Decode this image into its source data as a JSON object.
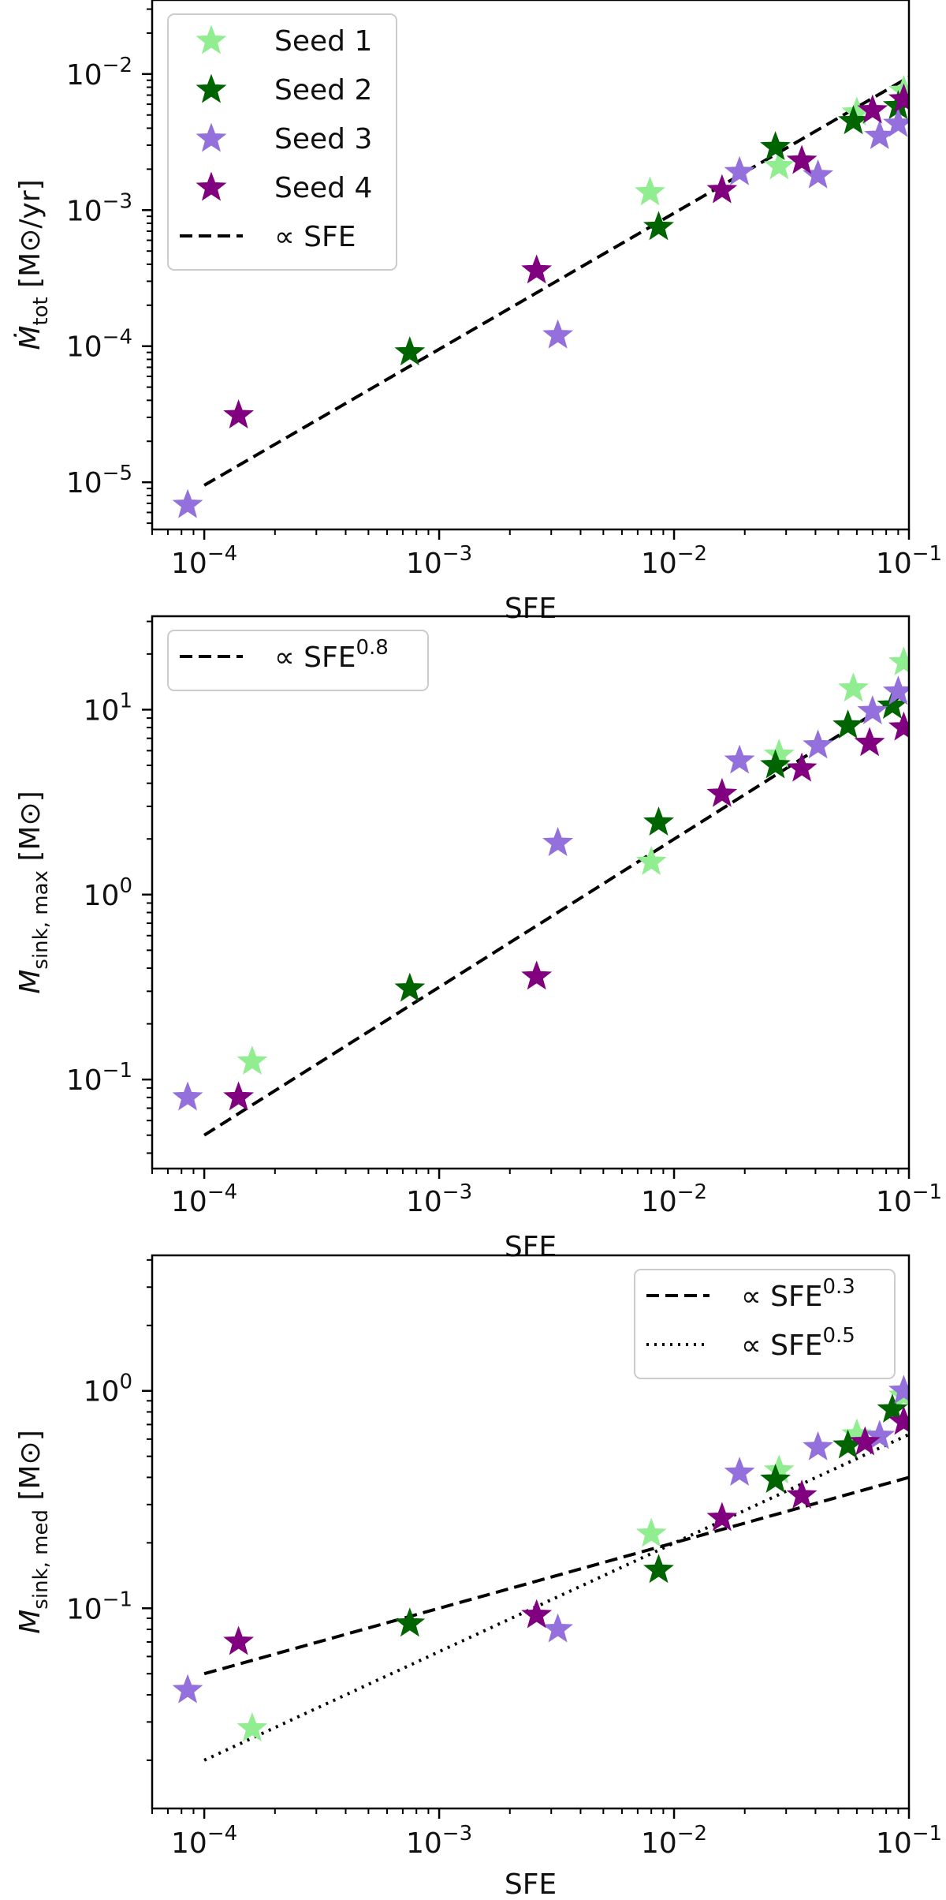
{
  "chart_data": [
    {
      "type": "scatter",
      "xlabel": "SFE",
      "ylabel_main": "Ṁ",
      "ylabel_sub": "tot",
      "ylabel_unit": "[M⊙/yr]",
      "xlim": [
        6e-05,
        0.1
      ],
      "ylim": [
        4.5e-06,
        0.035
      ],
      "x_ticks": [
        {
          "v": 0.0001,
          "base": "10",
          "exp": "−4"
        },
        {
          "v": 0.001,
          "base": "10",
          "exp": "−3"
        },
        {
          "v": 0.01,
          "base": "10",
          "exp": "−2"
        },
        {
          "v": 0.1,
          "base": "10",
          "exp": "−1"
        }
      ],
      "y_ticks": [
        {
          "v": 1e-05,
          "base": "10",
          "exp": "−5"
        },
        {
          "v": 0.0001,
          "base": "10",
          "exp": "−4"
        },
        {
          "v": 0.001,
          "base": "10",
          "exp": "−3"
        },
        {
          "v": 0.01,
          "base": "10",
          "exp": "−2"
        }
      ],
      "legend_position": "top-left",
      "series": [
        {
          "name": "Seed 1",
          "color": "#90ee90",
          "points": [
            [
              0.0079,
              0.00135
            ],
            [
              0.028,
              0.0021
            ],
            [
              0.06,
              0.0052
            ],
            [
              0.095,
              0.0075
            ]
          ]
        },
        {
          "name": "Seed 2",
          "color": "#006400",
          "points": [
            [
              0.00075,
              9e-05
            ],
            [
              0.0086,
              0.00075
            ],
            [
              0.027,
              0.0029
            ],
            [
              0.058,
              0.0045
            ],
            [
              0.09,
              0.0058
            ]
          ]
        },
        {
          "name": "Seed 3",
          "color": "#9370db",
          "points": [
            [
              8.5e-05,
              6.8e-06
            ],
            [
              0.0032,
              0.00012
            ],
            [
              0.019,
              0.0019
            ],
            [
              0.041,
              0.0018
            ],
            [
              0.075,
              0.0035
            ],
            [
              0.09,
              0.0043
            ]
          ]
        },
        {
          "name": "Seed 4",
          "color": "#800080",
          "points": [
            [
              0.00014,
              3.1e-05
            ],
            [
              0.0026,
              0.00036
            ],
            [
              0.016,
              0.0014
            ],
            [
              0.035,
              0.0023
            ],
            [
              0.07,
              0.0054
            ],
            [
              0.095,
              0.0065
            ]
          ]
        }
      ],
      "fit_lines": [
        {
          "label_prefix": "∝ SFE",
          "label_exp": "",
          "style": "dashed",
          "points": [
            [
              0.0001,
              9.5e-06
            ],
            [
              0.1,
              0.0095
            ]
          ]
        }
      ]
    },
    {
      "type": "scatter",
      "xlabel": "SFE",
      "ylabel_main": "M",
      "ylabel_sub": "sink, max",
      "ylabel_unit": "[M⊙]",
      "xlim": [
        6e-05,
        0.1
      ],
      "ylim": [
        0.033,
        32
      ],
      "x_ticks": [
        {
          "v": 0.0001,
          "base": "10",
          "exp": "−4"
        },
        {
          "v": 0.001,
          "base": "10",
          "exp": "−3"
        },
        {
          "v": 0.01,
          "base": "10",
          "exp": "−2"
        },
        {
          "v": 0.1,
          "base": "10",
          "exp": "−1"
        }
      ],
      "y_ticks": [
        {
          "v": 0.1,
          "base": "10",
          "exp": "−1"
        },
        {
          "v": 1,
          "base": "10",
          "exp": "0"
        },
        {
          "v": 10,
          "base": "10",
          "exp": "1"
        }
      ],
      "legend_position": "top-left",
      "series": [
        {
          "name": "Seed 1",
          "color": "#90ee90",
          "points": [
            [
              0.00016,
              0.125
            ],
            [
              0.008,
              1.5
            ],
            [
              0.028,
              5.7
            ],
            [
              0.058,
              13
            ],
            [
              0.095,
              18
            ]
          ]
        },
        {
          "name": "Seed 2",
          "color": "#006400",
          "points": [
            [
              0.00075,
              0.31
            ],
            [
              0.0086,
              2.45
            ],
            [
              0.027,
              5.0
            ],
            [
              0.055,
              8.2
            ],
            [
              0.085,
              10.5
            ]
          ]
        },
        {
          "name": "Seed 3",
          "color": "#9370db",
          "points": [
            [
              8.5e-05,
              0.08
            ],
            [
              0.0032,
              1.9
            ],
            [
              0.019,
              5.3
            ],
            [
              0.041,
              6.4
            ],
            [
              0.07,
              9.8
            ],
            [
              0.09,
              12.5
            ]
          ]
        },
        {
          "name": "Seed 4",
          "color": "#800080",
          "points": [
            [
              0.00014,
              0.08
            ],
            [
              0.0026,
              0.36
            ],
            [
              0.016,
              3.5
            ],
            [
              0.035,
              4.8
            ],
            [
              0.068,
              6.6
            ],
            [
              0.095,
              8.0
            ]
          ]
        }
      ],
      "fit_lines": [
        {
          "label_prefix": "∝ SFE",
          "label_exp": "0.8",
          "style": "dashed",
          "points": [
            [
              0.0001,
              0.05
            ],
            [
              0.1,
              12.6
            ]
          ]
        }
      ]
    },
    {
      "type": "scatter",
      "xlabel": "SFE",
      "ylabel_main": "M",
      "ylabel_sub": "sink, med",
      "ylabel_unit": "[M⊙]",
      "xlim": [
        6e-05,
        0.1
      ],
      "ylim": [
        0.012,
        4.2
      ],
      "x_ticks": [
        {
          "v": 0.0001,
          "base": "10",
          "exp": "−4"
        },
        {
          "v": 0.001,
          "base": "10",
          "exp": "−3"
        },
        {
          "v": 0.01,
          "base": "10",
          "exp": "−2"
        },
        {
          "v": 0.1,
          "base": "10",
          "exp": "−1"
        }
      ],
      "y_ticks": [
        {
          "v": 0.1,
          "base": "10",
          "exp": "−1"
        },
        {
          "v": 1,
          "base": "10",
          "exp": "0"
        }
      ],
      "legend_position": "top-right",
      "series": [
        {
          "name": "Seed 1",
          "color": "#90ee90",
          "points": [
            [
              0.00016,
              0.028
            ],
            [
              0.008,
              0.22
            ],
            [
              0.028,
              0.43
            ],
            [
              0.06,
              0.63
            ],
            [
              0.095,
              0.95
            ]
          ]
        },
        {
          "name": "Seed 2",
          "color": "#006400",
          "points": [
            [
              0.00075,
              0.085
            ],
            [
              0.0086,
              0.15
            ],
            [
              0.027,
              0.39
            ],
            [
              0.055,
              0.56
            ],
            [
              0.085,
              0.82
            ]
          ]
        },
        {
          "name": "Seed 3",
          "color": "#9370db",
          "points": [
            [
              8.5e-05,
              0.042
            ],
            [
              0.0032,
              0.08
            ],
            [
              0.019,
              0.42
            ],
            [
              0.041,
              0.55
            ],
            [
              0.075,
              0.62
            ],
            [
              0.095,
              1.0
            ]
          ]
        },
        {
          "name": "Seed 4",
          "color": "#800080",
          "points": [
            [
              0.00014,
              0.07
            ],
            [
              0.0026,
              0.093
            ],
            [
              0.016,
              0.26
            ],
            [
              0.035,
              0.33
            ],
            [
              0.065,
              0.58
            ],
            [
              0.095,
              0.72
            ]
          ]
        }
      ],
      "fit_lines": [
        {
          "label_prefix": "∝ SFE",
          "label_exp": "0.3",
          "style": "dashed",
          "points": [
            [
              0.0001,
              0.05
            ],
            [
              0.1,
              0.4
            ]
          ]
        },
        {
          "label_prefix": "∝ SFE",
          "label_exp": "0.5",
          "style": "dotted",
          "points": [
            [
              0.0001,
              0.02
            ],
            [
              0.1,
              0.63
            ]
          ]
        }
      ]
    }
  ]
}
